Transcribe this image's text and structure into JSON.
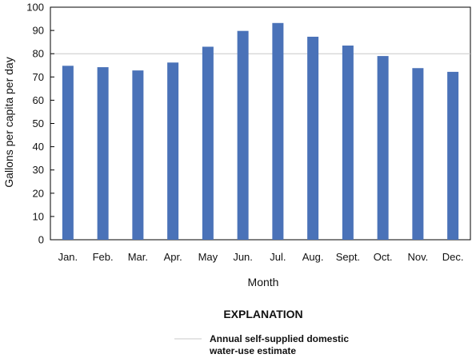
{
  "chart_data": {
    "type": "bar",
    "categories": [
      "Jan.",
      "Feb.",
      "Mar.",
      "Apr.",
      "May",
      "Jun.",
      "Jul.",
      "Aug.",
      "Sept.",
      "Oct.",
      "Nov.",
      "Dec."
    ],
    "values": [
      74.8,
      74.2,
      72.8,
      76.2,
      83.0,
      89.8,
      93.2,
      87.3,
      83.5,
      79.0,
      73.8,
      72.2
    ],
    "xlabel": "Month",
    "ylabel": "Gallons per capita per day",
    "ylim": [
      0,
      100
    ],
    "yticks": [
      0,
      10,
      20,
      30,
      40,
      50,
      60,
      70,
      80,
      90,
      100
    ],
    "grid": false,
    "reference_line": {
      "value": 80,
      "label_line1": "Annual self-supplied domestic",
      "label_line2": "water-use estimate"
    },
    "legend": {
      "title": "EXPLANATION",
      "position": "bottom-center"
    },
    "colors": {
      "bar": "#4a72b8",
      "reference_line": "#c8c8c8",
      "axis": "#000000"
    }
  }
}
